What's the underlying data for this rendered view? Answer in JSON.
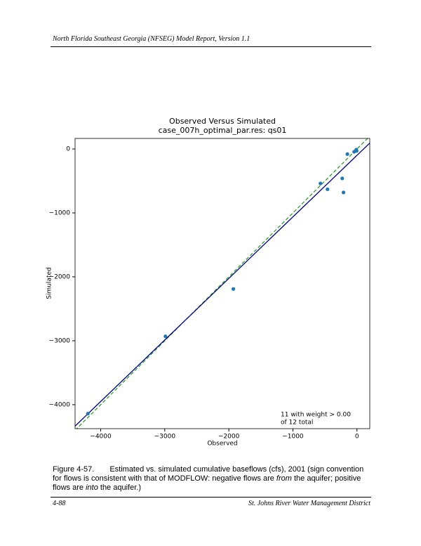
{
  "header": {
    "title": "North Florida Southeast Georgia (NFSEG) Model Report, Version 1.1"
  },
  "chart_data": {
    "type": "scatter",
    "title": [
      "Observed Versus Simulated",
      "case_007h_optimal_par.res: qs01"
    ],
    "x_label": "Observed",
    "y_label": "Simulated",
    "annotation": [
      "11 with weight > 0.00",
      "of 12 total"
    ],
    "color": "#1f77b4",
    "x": [
      -4200,
      -2990,
      -1930,
      -570,
      -460,
      -230,
      -210,
      -150,
      -44,
      -11,
      -5
    ],
    "values": [
      -4140,
      -2930,
      -2190,
      -540,
      -630,
      -460,
      -680,
      -80,
      -44,
      -11,
      -30
    ],
    "lines": [
      {
        "color": "#2ca02c",
        "dashed": true,
        "x": [
          -4400,
          200
        ],
        "y": [
          -4400,
          200
        ]
      },
      {
        "color": "#00008b",
        "dashed": false,
        "x": [
          -4400,
          200
        ],
        "y": [
          -4335,
          93
        ]
      }
    ],
    "xlim": [
      -4400,
      200
    ],
    "ylim": [
      -4375,
      165
    ],
    "xticks": [
      {
        "value": -4000,
        "label": "−4000"
      },
      {
        "value": -3000,
        "label": "−3000"
      },
      {
        "value": -2000,
        "label": "−2000"
      },
      {
        "value": -1000,
        "label": "−1000"
      },
      0
    ],
    "yticks": [
      {
        "value": -4000,
        "label": "−4000"
      },
      {
        "value": -3000,
        "label": "−3000"
      },
      {
        "value": -2000,
        "label": "−2000"
      },
      {
        "value": -1000,
        "label": "−1000"
      },
      0
    ]
  },
  "caption": {
    "label": "Figure 4-57.",
    "text": [
      "Estimated vs. simulated cumulative baseflows (cfs), 2001 (sign convention for flows is consistent with that of MODFLOW: negative flows are ",
      "from",
      " the aquifer; positive flows are ",
      "into",
      " the aquifer.)"
    ]
  },
  "footer": {
    "page": "4-88",
    "org": "St. Johns River Water Management District"
  }
}
